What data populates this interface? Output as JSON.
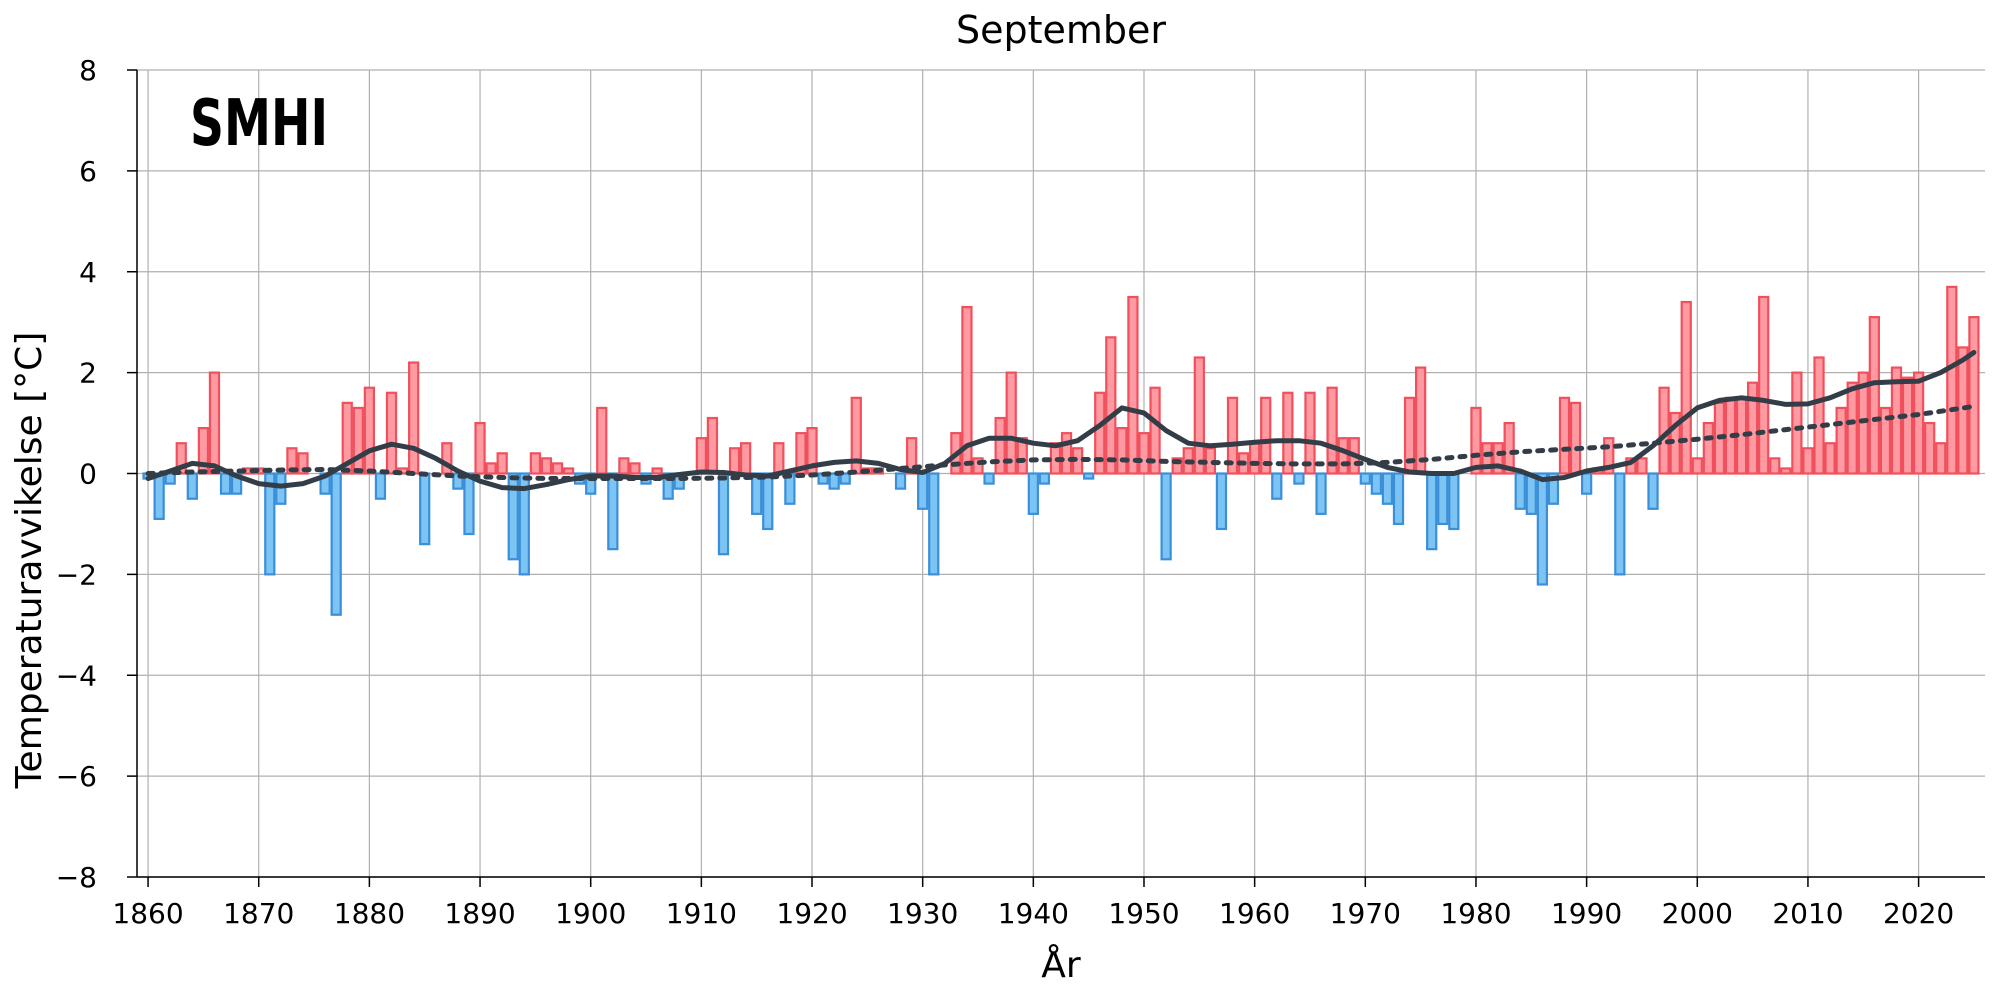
{
  "chart_data": {
    "type": "bar",
    "title": "September",
    "xlabel": "År",
    "ylabel": "Temperaturavvikelse [°C]",
    "logo": "SMHI",
    "xlim": [
      1859,
      2026
    ],
    "ylim": [
      -8,
      8
    ],
    "xticks": [
      1860,
      1870,
      1880,
      1890,
      1900,
      1910,
      1920,
      1930,
      1940,
      1950,
      1960,
      1970,
      1980,
      1990,
      2000,
      2010,
      2020
    ],
    "yticks": [
      -8,
      -6,
      -4,
      -2,
      0,
      2,
      4,
      6,
      8
    ],
    "ytick_labels": [
      "−8",
      "−6",
      "−4",
      "−2",
      "0",
      "2",
      "4",
      "6",
      "8"
    ],
    "grid": true,
    "colors": {
      "positive_fill": "#ff9aa2",
      "positive_edge": "#f0505c",
      "negative_fill": "#7cc4f4",
      "negative_edge": "#3a8fd8",
      "smooth_line": "#333d47",
      "trend_line": "#333d47",
      "grid": "#b0b0b0"
    },
    "start_year": 1860,
    "values": [
      -0.1,
      -0.9,
      -0.2,
      0.6,
      -0.5,
      0.9,
      2.0,
      -0.4,
      -0.4,
      0.1,
      0.1,
      -2.0,
      -0.6,
      0.5,
      0.4,
      0.0,
      -0.4,
      -2.8,
      1.4,
      1.3,
      1.7,
      -0.5,
      1.6,
      0.1,
      2.2,
      -1.4,
      0.0,
      0.6,
      -0.3,
      -1.2,
      1.0,
      0.2,
      0.4,
      -1.7,
      -2.0,
      0.4,
      0.3,
      0.2,
      0.1,
      -0.2,
      -0.4,
      1.3,
      -1.5,
      0.3,
      0.2,
      -0.2,
      0.1,
      -0.5,
      -0.3,
      0.0,
      0.7,
      1.1,
      -1.6,
      0.5,
      0.6,
      -0.8,
      -1.1,
      0.6,
      -0.6,
      0.8,
      0.9,
      -0.2,
      -0.3,
      -0.2,
      1.5,
      0.1,
      0.1,
      0.0,
      -0.3,
      0.7,
      -0.7,
      -2.0,
      0.0,
      0.8,
      3.3,
      0.3,
      -0.2,
      1.1,
      2.0,
      0.7,
      -0.8,
      -0.2,
      0.6,
      0.8,
      0.5,
      -0.1,
      1.6,
      2.7,
      0.9,
      3.5,
      0.8,
      1.7,
      -1.7,
      0.3,
      0.5,
      2.3,
      0.5,
      -1.1,
      1.5,
      0.4,
      0.6,
      1.5,
      -0.5,
      1.6,
      -0.2,
      1.6,
      -0.8,
      1.7,
      0.7,
      0.7,
      -0.2,
      -0.4,
      -0.6,
      -1.0,
      1.5,
      2.1,
      -1.5,
      -1.0,
      -1.1,
      0.0,
      1.3,
      0.6,
      0.6,
      1.0,
      -0.7,
      -0.8,
      -2.2,
      -0.6,
      1.5,
      1.4,
      -0.4,
      0.1,
      0.7,
      -2.0,
      0.3,
      0.3,
      -0.7,
      1.7,
      1.2,
      3.4,
      0.3,
      1.0,
      1.4,
      1.5,
      1.5,
      1.8,
      3.5,
      0.3,
      0.1,
      2.0,
      0.5,
      2.3,
      0.6,
      1.3,
      1.8,
      2.0,
      3.1,
      1.3,
      2.1,
      1.9,
      2.0,
      1.0,
      0.6,
      3.7,
      2.5,
      3.1
    ],
    "smoothed": {
      "name": "",
      "points": [
        [
          1860,
          -0.1
        ],
        [
          1862,
          0.05
        ],
        [
          1864,
          0.2
        ],
        [
          1866,
          0.15
        ],
        [
          1868,
          -0.05
        ],
        [
          1870,
          -0.2
        ],
        [
          1872,
          -0.25
        ],
        [
          1874,
          -0.2
        ],
        [
          1876,
          -0.05
        ],
        [
          1878,
          0.2
        ],
        [
          1880,
          0.45
        ],
        [
          1882,
          0.58
        ],
        [
          1884,
          0.5
        ],
        [
          1886,
          0.3
        ],
        [
          1888,
          0.05
        ],
        [
          1890,
          -0.15
        ],
        [
          1892,
          -0.28
        ],
        [
          1894,
          -0.3
        ],
        [
          1896,
          -0.22
        ],
        [
          1898,
          -0.12
        ],
        [
          1900,
          -0.05
        ],
        [
          1902,
          -0.05
        ],
        [
          1904,
          -0.08
        ],
        [
          1906,
          -0.08
        ],
        [
          1908,
          -0.02
        ],
        [
          1910,
          0.03
        ],
        [
          1912,
          0.02
        ],
        [
          1914,
          -0.03
        ],
        [
          1916,
          -0.05
        ],
        [
          1918,
          0.05
        ],
        [
          1920,
          0.15
        ],
        [
          1922,
          0.22
        ],
        [
          1924,
          0.25
        ],
        [
          1926,
          0.2
        ],
        [
          1928,
          0.08
        ],
        [
          1930,
          0.02
        ],
        [
          1932,
          0.2
        ],
        [
          1934,
          0.55
        ],
        [
          1936,
          0.7
        ],
        [
          1938,
          0.7
        ],
        [
          1940,
          0.6
        ],
        [
          1942,
          0.55
        ],
        [
          1944,
          0.65
        ],
        [
          1946,
          0.95
        ],
        [
          1948,
          1.3
        ],
        [
          1950,
          1.2
        ],
        [
          1952,
          0.85
        ],
        [
          1954,
          0.6
        ],
        [
          1956,
          0.55
        ],
        [
          1958,
          0.58
        ],
        [
          1960,
          0.62
        ],
        [
          1962,
          0.65
        ],
        [
          1964,
          0.65
        ],
        [
          1966,
          0.6
        ],
        [
          1968,
          0.45
        ],
        [
          1970,
          0.28
        ],
        [
          1972,
          0.12
        ],
        [
          1974,
          0.03
        ],
        [
          1976,
          0.0
        ],
        [
          1978,
          0.0
        ],
        [
          1980,
          0.12
        ],
        [
          1982,
          0.15
        ],
        [
          1984,
          0.05
        ],
        [
          1986,
          -0.12
        ],
        [
          1988,
          -0.08
        ],
        [
          1990,
          0.05
        ],
        [
          1992,
          0.12
        ],
        [
          1994,
          0.22
        ],
        [
          1996,
          0.55
        ],
        [
          1998,
          0.95
        ],
        [
          2000,
          1.3
        ],
        [
          2002,
          1.45
        ],
        [
          2004,
          1.5
        ],
        [
          2006,
          1.45
        ],
        [
          2008,
          1.37
        ],
        [
          2010,
          1.38
        ],
        [
          2012,
          1.5
        ],
        [
          2014,
          1.68
        ],
        [
          2016,
          1.8
        ],
        [
          2018,
          1.82
        ],
        [
          2020,
          1.83
        ],
        [
          2022,
          2.0
        ],
        [
          2024,
          2.25
        ],
        [
          2025,
          2.4
        ]
      ]
    },
    "trend": {
      "name": "",
      "points": [
        [
          1860,
          0.0
        ],
        [
          1864,
          0.03
        ],
        [
          1868,
          0.05
        ],
        [
          1872,
          0.07
        ],
        [
          1876,
          0.08
        ],
        [
          1880,
          0.05
        ],
        [
          1884,
          0.0
        ],
        [
          1888,
          -0.05
        ],
        [
          1892,
          -0.08
        ],
        [
          1896,
          -0.1
        ],
        [
          1900,
          -0.1
        ],
        [
          1904,
          -0.1
        ],
        [
          1908,
          -0.1
        ],
        [
          1912,
          -0.09
        ],
        [
          1916,
          -0.07
        ],
        [
          1920,
          -0.03
        ],
        [
          1924,
          0.03
        ],
        [
          1928,
          0.1
        ],
        [
          1932,
          0.17
        ],
        [
          1936,
          0.23
        ],
        [
          1940,
          0.27
        ],
        [
          1944,
          0.28
        ],
        [
          1948,
          0.27
        ],
        [
          1952,
          0.24
        ],
        [
          1956,
          0.22
        ],
        [
          1960,
          0.2
        ],
        [
          1964,
          0.19
        ],
        [
          1968,
          0.19
        ],
        [
          1972,
          0.22
        ],
        [
          1976,
          0.28
        ],
        [
          1980,
          0.36
        ],
        [
          1984,
          0.43
        ],
        [
          1988,
          0.48
        ],
        [
          1992,
          0.53
        ],
        [
          1996,
          0.6
        ],
        [
          2000,
          0.68
        ],
        [
          2004,
          0.77
        ],
        [
          2008,
          0.87
        ],
        [
          2012,
          0.97
        ],
        [
          2016,
          1.07
        ],
        [
          2020,
          1.17
        ],
        [
          2025,
          1.33
        ]
      ]
    }
  }
}
